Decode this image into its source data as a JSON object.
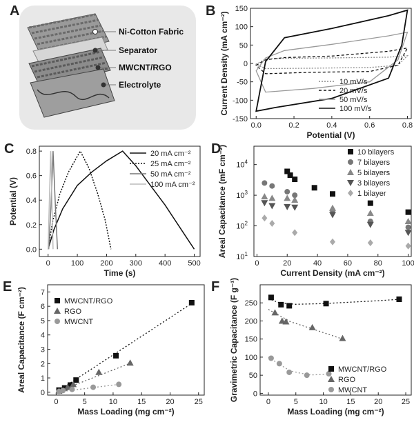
{
  "panel_labels": {
    "A": "A",
    "B": "B",
    "C": "C",
    "D": "D",
    "E": "E",
    "F": "F"
  },
  "illustration": {
    "labels": [
      "Ni-Cotton Fabric",
      "Separator",
      "MWCNT/RGO",
      "Electrolyte"
    ]
  },
  "chart_data": [
    {
      "id": "B",
      "type": "line",
      "xlabel": "Potential (V)",
      "ylabel": "Current Density (mA cm⁻²)",
      "xlim": [
        -0.03,
        0.82
      ],
      "ylim": [
        -150,
        150
      ],
      "xticks": [
        0.0,
        0.2,
        0.4,
        0.6,
        0.8
      ],
      "xtick_labels": [
        "0.0",
        "0.2",
        "0.4",
        "0.6",
        "0.8"
      ],
      "yticks": [
        -150,
        -100,
        -50,
        0,
        50,
        100,
        150
      ],
      "ytick_labels": [
        "-150",
        "-100",
        "-50",
        "0",
        "50",
        "100",
        "150"
      ],
      "series": [
        {
          "name": "10 mV/s",
          "style": "dotted",
          "color": "#888888",
          "top": [
            [
              0,
              -2
            ],
            [
              0.05,
              12
            ],
            [
              0.15,
              14
            ],
            [
              0.4,
              15
            ],
            [
              0.7,
              17
            ],
            [
              0.8,
              21
            ]
          ],
          "bottom": [
            [
              0.8,
              21
            ],
            [
              0.75,
              -5
            ],
            [
              0.6,
              -11
            ],
            [
              0.3,
              -13
            ],
            [
              0.05,
              -14
            ],
            [
              0,
              -2
            ]
          ]
        },
        {
          "name": "20 mV/s",
          "style": "dashed",
          "color": "#111111",
          "top": [
            [
              0,
              -5
            ],
            [
              0.05,
              10
            ],
            [
              0.15,
              16
            ],
            [
              0.4,
              20
            ],
            [
              0.7,
              33
            ],
            [
              0.8,
              42
            ]
          ],
          "bottom": [
            [
              0.8,
              42
            ],
            [
              0.75,
              -5
            ],
            [
              0.6,
              -22
            ],
            [
              0.3,
              -24
            ],
            [
              0.05,
              -28
            ],
            [
              0,
              -5
            ]
          ]
        },
        {
          "name": "50 mV/s",
          "style": "solid",
          "color": "#999999",
          "top": [
            [
              0,
              -20
            ],
            [
              0.05,
              15
            ],
            [
              0.15,
              35
            ],
            [
              0.4,
              52
            ],
            [
              0.7,
              75
            ],
            [
              0.8,
              85
            ]
          ],
          "bottom": [
            [
              0.8,
              85
            ],
            [
              0.75,
              10
            ],
            [
              0.6,
              -50
            ],
            [
              0.3,
              -68
            ],
            [
              0.05,
              -78
            ],
            [
              0,
              -20
            ]
          ]
        },
        {
          "name": "100 mV/s",
          "style": "solid",
          "color": "#111111",
          "top": [
            [
              0,
              -130
            ],
            [
              0.05,
              5
            ],
            [
              0.15,
              70
            ],
            [
              0.4,
              95
            ],
            [
              0.7,
              130
            ],
            [
              0.8,
              145
            ]
          ],
          "bottom": [
            [
              0.8,
              145
            ],
            [
              0.77,
              50
            ],
            [
              0.7,
              -40
            ],
            [
              0.4,
              -95
            ],
            [
              0.1,
              -120
            ],
            [
              0,
              -130
            ]
          ]
        }
      ]
    },
    {
      "id": "C",
      "type": "line",
      "xlabel": "Time (s)",
      "ylabel": "Potential (V)",
      "xlim": [
        -30,
        520
      ],
      "ylim": [
        -0.06,
        0.84
      ],
      "xticks": [
        0,
        100,
        200,
        300,
        400,
        500
      ],
      "xtick_labels": [
        "0",
        "100",
        "200",
        "300",
        "400",
        "500"
      ],
      "yticks": [
        0.0,
        0.2,
        0.4,
        0.6,
        0.8
      ],
      "ytick_labels": [
        "0.0",
        "0.2",
        "0.4",
        "0.6",
        "0.8"
      ],
      "series": [
        {
          "name": "20 mA cm⁻²",
          "style": "solid",
          "color": "#111111",
          "points": [
            [
              0,
              0
            ],
            [
              20,
              0.16
            ],
            [
              50,
              0.33
            ],
            [
              100,
              0.52
            ],
            [
              150,
              0.63
            ],
            [
              200,
              0.72
            ],
            [
              255,
              0.8
            ],
            [
              300,
              0.68
            ],
            [
              350,
              0.52
            ],
            [
              400,
              0.36
            ],
            [
              450,
              0.18
            ],
            [
              500,
              0
            ]
          ]
        },
        {
          "name": "25 mA cm⁻²",
          "style": "dotted",
          "color": "#111111",
          "points": [
            [
              0,
              0
            ],
            [
              15,
              0.22
            ],
            [
              40,
              0.45
            ],
            [
              70,
              0.63
            ],
            [
              110,
              0.8
            ],
            [
              140,
              0.66
            ],
            [
              170,
              0.45
            ],
            [
              195,
              0.24
            ],
            [
              215,
              0
            ]
          ]
        },
        {
          "name": "50 mA cm⁻²",
          "style": "solid",
          "color": "#777777",
          "points": [
            [
              2,
              0
            ],
            [
              10,
              0.35
            ],
            [
              17,
              0.8
            ],
            [
              25,
              0.35
            ],
            [
              32,
              0
            ]
          ]
        },
        {
          "name": "100 mA cm⁻²",
          "style": "solid",
          "color": "#bbbbbb",
          "points": [
            [
              0,
              0
            ],
            [
              5,
              0.45
            ],
            [
              9,
              0.8
            ],
            [
              13,
              0.4
            ],
            [
              17,
              0
            ]
          ]
        }
      ]
    },
    {
      "id": "D",
      "type": "scatter",
      "xlabel": "Current Density (mA cm⁻²)",
      "ylabel": "Areal Capacitance (mF cm⁻²)",
      "xscale": "linear",
      "yscale": "log",
      "xlim": [
        -2,
        102
      ],
      "ylim_exp": [
        1,
        4.6
      ],
      "xticks": [
        0,
        20,
        40,
        60,
        80,
        100
      ],
      "xtick_labels": [
        "0",
        "20",
        "40",
        "60",
        "80",
        "100"
      ],
      "yticks_exp": [
        1,
        2,
        3,
        4
      ],
      "ytick_labels": [
        "10",
        "10",
        "10",
        "10"
      ],
      "ytick_sup": [
        "1",
        "2",
        "3",
        "4"
      ],
      "series": [
        {
          "name": "10 bilayers",
          "marker": "square",
          "color": "#111111",
          "points": [
            [
              20,
              6000
            ],
            [
              22,
              4500
            ],
            [
              25,
              3300
            ],
            [
              38,
              1750
            ],
            [
              50,
              1100
            ],
            [
              75,
              550
            ],
            [
              100,
              280
            ]
          ]
        },
        {
          "name": "7 bilayers",
          "marker": "circle",
          "color": "#777777",
          "points": [
            [
              5,
              2500
            ],
            [
              10,
              2000
            ],
            [
              20,
              1300
            ],
            [
              25,
              1000
            ],
            [
              50,
              320
            ],
            [
              75,
              140
            ],
            [
              100,
              90
            ]
          ]
        },
        {
          "name": "5 bilayers",
          "marker": "triangle-up",
          "color": "#888888",
          "points": [
            [
              5,
              900
            ],
            [
              10,
              800
            ],
            [
              20,
              800
            ],
            [
              25,
              700
            ],
            [
              50,
              380
            ],
            [
              75,
              260
            ],
            [
              100,
              140
            ]
          ]
        },
        {
          "name": "3 bilayers",
          "marker": "triangle-down",
          "color": "#555555",
          "points": [
            [
              5,
              560
            ],
            [
              10,
              450
            ],
            [
              20,
              420
            ],
            [
              25,
              400
            ],
            [
              50,
              230
            ],
            [
              75,
              110
            ],
            [
              100,
              60
            ]
          ]
        },
        {
          "name": "1 bilayer",
          "marker": "diamond",
          "color": "#aaaaaa",
          "points": [
            [
              5,
              180
            ],
            [
              10,
              120
            ],
            [
              25,
              60
            ],
            [
              50,
              30
            ],
            [
              75,
              28
            ],
            [
              100,
              22
            ]
          ]
        }
      ]
    },
    {
      "id": "E",
      "type": "scatter",
      "xlabel": "Mass Loading (mg cm⁻²)",
      "ylabel": "Areal Capacitance (F cm⁻²)",
      "xlim": [
        -1.5,
        26
      ],
      "ylim": [
        -0.2,
        7.5
      ],
      "xticks": [
        0,
        5,
        10,
        15,
        20,
        25
      ],
      "xtick_labels": [
        "0",
        "5",
        "10",
        "15",
        "20",
        "25"
      ],
      "yticks": [
        0,
        1,
        2,
        3,
        4,
        5,
        6,
        7
      ],
      "ytick_labels": [
        "0",
        "1",
        "2",
        "3",
        "4",
        "5",
        "6",
        "7"
      ],
      "series": [
        {
          "name": "MWCNT/RGO",
          "marker": "square",
          "color": "#111111",
          "points": [
            [
              0.5,
              0.15
            ],
            [
              1.5,
              0.3
            ],
            [
              2.5,
              0.5
            ],
            [
              3.5,
              0.85
            ],
            [
              10.5,
              2.55
            ],
            [
              23.8,
              6.25
            ]
          ],
          "fit": [
            [
              0,
              0
            ],
            [
              24,
              6.25
            ]
          ]
        },
        {
          "name": "RGO",
          "marker": "triangle-up",
          "color": "#666666",
          "points": [
            [
              0.5,
              0.08
            ],
            [
              2,
              0.35
            ],
            [
              3,
              0.55
            ],
            [
              7.5,
              1.4
            ],
            [
              13,
              2.05
            ]
          ],
          "fit": [
            [
              0,
              0
            ],
            [
              13.5,
              2.1
            ]
          ]
        },
        {
          "name": "MWCNT",
          "marker": "circle",
          "color": "#999999",
          "points": [
            [
              0.5,
              0.05
            ],
            [
              1.2,
              0.12
            ],
            [
              2.8,
              0.2
            ],
            [
              6.5,
              0.35
            ],
            [
              11,
              0.55
            ]
          ],
          "fit": [
            [
              0,
              0
            ],
            [
              11,
              0.55
            ]
          ]
        }
      ]
    },
    {
      "id": "F",
      "type": "scatter",
      "xlabel": "Mass Loading  (mg cm⁻²)",
      "ylabel": "Gravimetric Capacitance (F g⁻¹)",
      "xlim": [
        -1.5,
        26
      ],
      "ylim": [
        -5,
        300
      ],
      "xticks": [
        0,
        5,
        10,
        15,
        20,
        25
      ],
      "xtick_labels": [
        "0",
        "5",
        "10",
        "15",
        "20",
        "25"
      ],
      "yticks": [
        0,
        50,
        100,
        150,
        200,
        250
      ],
      "ytick_labels": [
        "0",
        "50",
        "100",
        "150",
        "200",
        "250"
      ],
      "series": [
        {
          "name": "MWCNT/RGO",
          "marker": "square",
          "color": "#111111",
          "points": [
            [
              0.5,
              265
            ],
            [
              2.3,
              245
            ],
            [
              3.8,
              242
            ],
            [
              10.5,
              248
            ],
            [
              23.8,
              260
            ]
          ],
          "fit": [
            [
              0,
              262
            ],
            [
              2,
              250
            ],
            [
              5,
              246
            ],
            [
              10,
              248
            ],
            [
              15,
              252
            ],
            [
              20,
              256
            ],
            [
              24,
              260
            ]
          ]
        },
        {
          "name": "RGO",
          "marker": "triangle-up",
          "color": "#666666",
          "points": [
            [
              1.2,
              223
            ],
            [
              2.5,
              200
            ],
            [
              3.2,
              198
            ],
            [
              8,
              182
            ],
            [
              13.5,
              152
            ]
          ],
          "fit": [
            [
              0,
              232
            ],
            [
              2,
              215
            ],
            [
              4,
              198
            ],
            [
              8,
              178
            ],
            [
              13.5,
              150
            ]
          ]
        },
        {
          "name": "MWCNT",
          "marker": "circle",
          "color": "#999999",
          "points": [
            [
              0.5,
              97
            ],
            [
              2,
              82
            ],
            [
              3.8,
              58
            ],
            [
              7,
              50
            ],
            [
              11,
              54
            ]
          ],
          "fit": [
            [
              0,
              100
            ],
            [
              2,
              80
            ],
            [
              4,
              62
            ],
            [
              6,
              55
            ],
            [
              8,
              51
            ],
            [
              10,
              52
            ],
            [
              11,
              54
            ]
          ]
        }
      ]
    }
  ]
}
